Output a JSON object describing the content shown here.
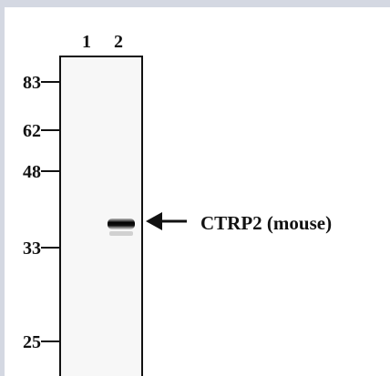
{
  "lanes": [
    "1",
    "2"
  ],
  "markers": [
    "83",
    "62",
    "48",
    "33",
    "25"
  ],
  "annotation": "CTRP2 (mouse)"
}
